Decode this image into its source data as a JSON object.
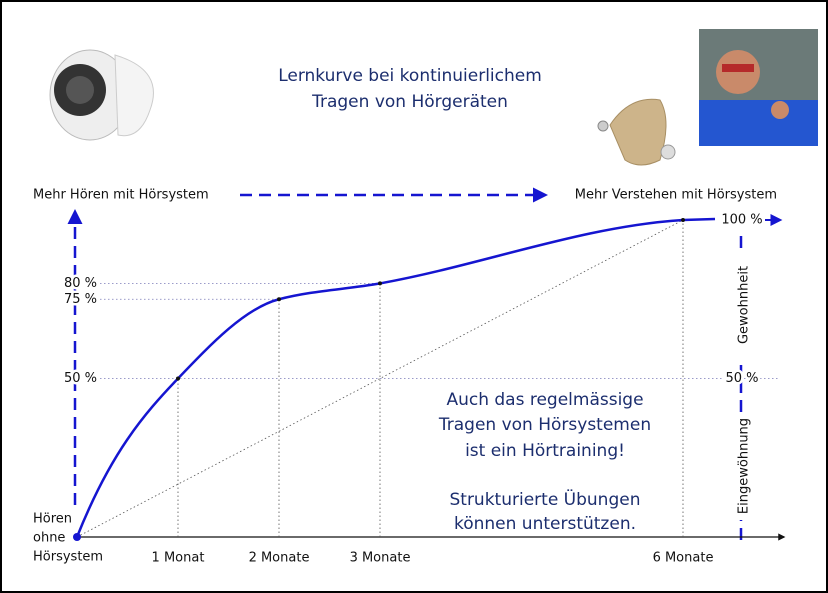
{
  "chart_data": {
    "type": "line",
    "title": [
      "Lernkurve bei kontinuierlichem",
      "Tragen von Hörgeräten"
    ],
    "top_left_label": "Mehr Hören mit Hörsystem",
    "top_right_label": "Mehr Verstehen mit Hörsystem",
    "origin_label": [
      "Hören",
      "ohne",
      "Hörsystem"
    ],
    "right_axis_labels": [
      "Gewohnheit",
      "Eingewöhnung"
    ],
    "annotation": [
      "Auch das regelmässige",
      "Tragen von Hörsystemen",
      "ist ein Hörtraining!",
      "Strukturierte Übungen",
      "können unterstützen."
    ],
    "x": [
      0,
      1,
      2,
      3,
      6
    ],
    "series": [
      {
        "name": "Lernkurve",
        "color": "#1515d0",
        "values": [
          0,
          50,
          75,
          80,
          100
        ]
      }
    ],
    "xlim": [
      0,
      7
    ],
    "xticks": [
      {
        "value": 1,
        "label": "1 Monat"
      },
      {
        "value": 2,
        "label": "2 Monate"
      },
      {
        "value": 3,
        "label": "3 Monate"
      },
      {
        "value": 6,
        "label": "6 Monate"
      }
    ],
    "ylim": [
      0,
      100
    ],
    "yticks": [
      {
        "value": 50,
        "label": "50 %"
      },
      {
        "value": 75,
        "label": "75 %"
      },
      {
        "value": 80,
        "label": "80 %"
      }
    ],
    "y2lim": [
      0,
      100
    ],
    "y2ticks": [
      {
        "value": 50,
        "label": "50 %"
      },
      {
        "value": 100,
        "label": "100 %"
      }
    ]
  }
}
